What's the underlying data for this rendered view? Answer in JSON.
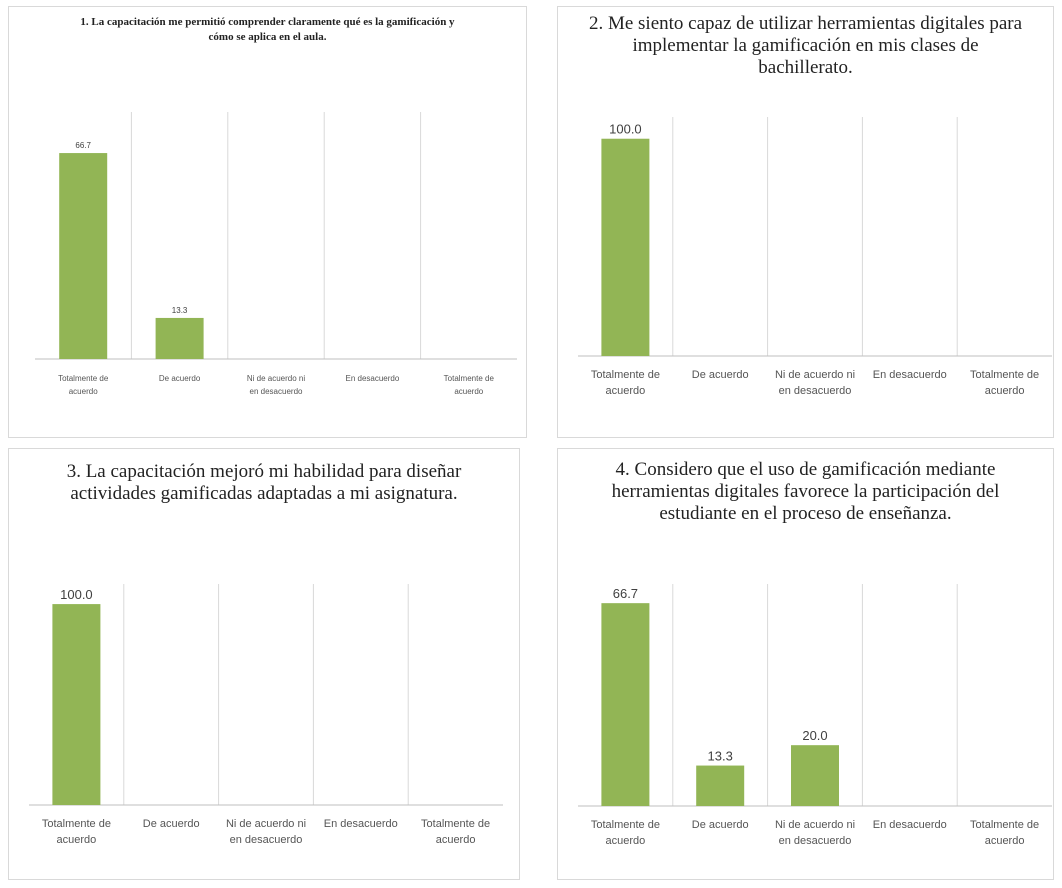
{
  "colors": {
    "bar": "#92b555",
    "grid": "#d9d9d9",
    "axis": "#bfbfbf"
  },
  "chart_data": [
    {
      "type": "bar",
      "title": "1. La capacitación me permitió comprender claramente qué es la gamificación y cómo se aplica en el aula.",
      "categories": [
        "Totalmente de acuerdo",
        "De acuerdo",
        "Ni de acuerdo ni en desacuerdo",
        "En desacuerdo",
        "Totalmente de acuerdo"
      ],
      "values": [
        66.7,
        13.3,
        0,
        0,
        0
      ],
      "value_labels": [
        "66.7",
        "13.3",
        "",
        "",
        ""
      ],
      "ylim": [
        0,
        80
      ],
      "grid": "vertical-separators",
      "legend": "none"
    },
    {
      "type": "bar",
      "title": "2. Me siento capaz de utilizar herramientas digitales para implementar la gamificación en mis clases de bachillerato.",
      "categories": [
        "Totalmente de acuerdo",
        "De acuerdo",
        "Ni de acuerdo ni en desacuerdo",
        "En desacuerdo",
        "Totalmente de acuerdo"
      ],
      "values": [
        100.0,
        0,
        0,
        0,
        0
      ],
      "value_labels": [
        "100.0",
        "",
        "",
        "",
        ""
      ],
      "ylim": [
        0,
        110
      ],
      "grid": "vertical-separators",
      "legend": "none"
    },
    {
      "type": "bar",
      "title": "3. La capacitación mejoró mi habilidad para diseñar actividades gamificadas adaptadas a mi asignatura.",
      "categories": [
        "Totalmente de acuerdo",
        "De acuerdo",
        "Ni de acuerdo ni en desacuerdo",
        "En desacuerdo",
        "Totalmente de acuerdo"
      ],
      "values": [
        100.0,
        0,
        0,
        0,
        0
      ],
      "value_labels": [
        "100.0",
        "",
        "",
        "",
        ""
      ],
      "ylim": [
        0,
        110
      ],
      "grid": "vertical-separators",
      "legend": "none"
    },
    {
      "type": "bar",
      "title": "4. Considero que el uso de gamificación mediante herramientas digitales favorece la participación del estudiante en el proceso de enseñanza.",
      "categories": [
        "Totalmente de acuerdo",
        "De acuerdo",
        "Ni de acuerdo ni en desacuerdo",
        "En desacuerdo",
        "Totalmente de acuerdo"
      ],
      "values": [
        66.7,
        13.3,
        20.0,
        0,
        0
      ],
      "value_labels": [
        "66.7",
        "13.3",
        "20.0",
        "",
        ""
      ],
      "ylim": [
        0,
        73
      ],
      "grid": "vertical-separators",
      "legend": "none"
    }
  ]
}
